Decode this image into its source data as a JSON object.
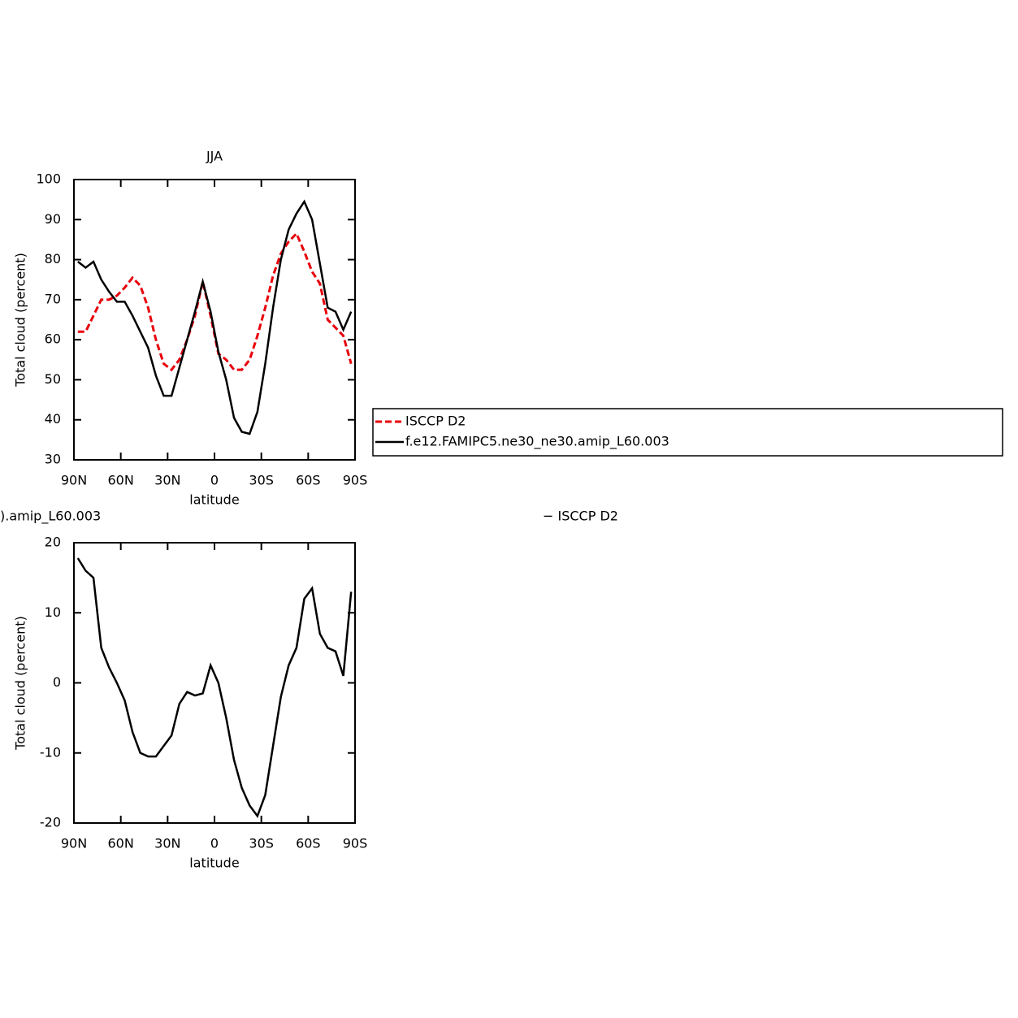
{
  "chart_data": [
    {
      "type": "line",
      "title": "JJA",
      "xlabel": "latitude",
      "ylabel": "Total cloud (percent)",
      "x": [
        87.5,
        82.5,
        77.5,
        72.5,
        67.5,
        62.5,
        57.5,
        52.5,
        47.5,
        42.5,
        37.5,
        32.5,
        27.5,
        22.5,
        17.5,
        12.5,
        7.5,
        2.5,
        -2.5,
        -7.5,
        -12.5,
        -17.5,
        -22.5,
        -27.5,
        -32.5,
        -37.5,
        -42.5,
        -47.5,
        -52.5,
        -57.5,
        -62.5,
        -67.5,
        -72.5,
        -77.5,
        -82.5,
        -87.5
      ],
      "series": [
        {
          "name": "ISCCP D2",
          "color": "#e8000b",
          "dashed": true,
          "values": [
            62,
            62,
            66,
            70,
            70,
            71,
            73,
            75.5,
            73.5,
            68,
            60,
            54,
            52.5,
            55,
            60,
            66,
            74.5,
            66,
            56.5,
            55,
            52.5,
            52.5,
            55,
            61,
            68,
            76,
            81.5,
            84.5,
            86.5,
            82,
            77,
            74,
            65,
            63,
            61,
            54
          ]
        },
        {
          "name": "f.e12.FAMIPC5.ne30_ne30.amip_L60.003",
          "color": "#000000",
          "dashed": false,
          "values": [
            79.5,
            78,
            79.5,
            75,
            72,
            69.5,
            69.5,
            66,
            62,
            58,
            51,
            46,
            46,
            53,
            60,
            67,
            74.5,
            67,
            57,
            50,
            40.5,
            37,
            36.5,
            42,
            54,
            68,
            80,
            87.5,
            91.5,
            94.5,
            90,
            79,
            68,
            67,
            62.5,
            67
          ]
        }
      ],
      "xlim": [
        90,
        -90
      ],
      "xticks": [
        {
          "value": 90,
          "label": "90N"
        },
        {
          "value": 60,
          "label": "60N"
        },
        {
          "value": 30,
          "label": "30N"
        },
        0,
        {
          "value": -30,
          "label": "30S"
        },
        {
          "value": -60,
          "label": "60S"
        },
        {
          "value": -90,
          "label": "90S"
        }
      ],
      "ylim": [
        30,
        100
      ],
      "yticks": [
        30,
        40,
        50,
        60,
        70,
        80,
        90,
        100
      ],
      "legend": "right"
    },
    {
      "type": "line",
      "title": ").amip_L60.003",
      "subtitle": "− ISCCP D2",
      "xlabel": "latitude",
      "ylabel": "Total cloud (percent)",
      "x": [
        87.5,
        82.5,
        77.5,
        72.5,
        67.5,
        62.5,
        57.5,
        52.5,
        47.5,
        42.5,
        37.5,
        32.5,
        27.5,
        22.5,
        17.5,
        12.5,
        7.5,
        2.5,
        -2.5,
        -7.5,
        -12.5,
        -17.5,
        -22.5,
        -27.5,
        -32.5,
        -37.5,
        -42.5,
        -47.5,
        -52.5,
        -57.5,
        -62.5,
        -67.5,
        -72.5,
        -77.5,
        -82.5,
        -87.5
      ],
      "series": [
        {
          "color": "#000000",
          "dashed": false,
          "values": [
            17.8,
            16,
            15,
            5,
            2.2,
            0,
            -2.5,
            -7,
            -10,
            -10.5,
            -10.5,
            -9,
            -7.5,
            -3,
            -1.3,
            -1.8,
            -1.5,
            2.5,
            0,
            -5,
            -11,
            -15,
            -17.5,
            -19,
            -16,
            -9,
            -2,
            2.5,
            5,
            12,
            13.5,
            7,
            5,
            4.5,
            1,
            13
          ]
        }
      ],
      "xlim": [
        90,
        -90
      ],
      "xticks": [
        {
          "value": 90,
          "label": "90N"
        },
        {
          "value": 60,
          "label": "60N"
        },
        {
          "value": 30,
          "label": "30N"
        },
        0,
        {
          "value": -30,
          "label": "30S"
        },
        {
          "value": -60,
          "label": "60S"
        },
        {
          "value": -90,
          "label": "90S"
        }
      ],
      "ylim": [
        -20,
        20
      ],
      "yticks": [
        -20,
        -10,
        0,
        10,
        20
      ]
    }
  ]
}
